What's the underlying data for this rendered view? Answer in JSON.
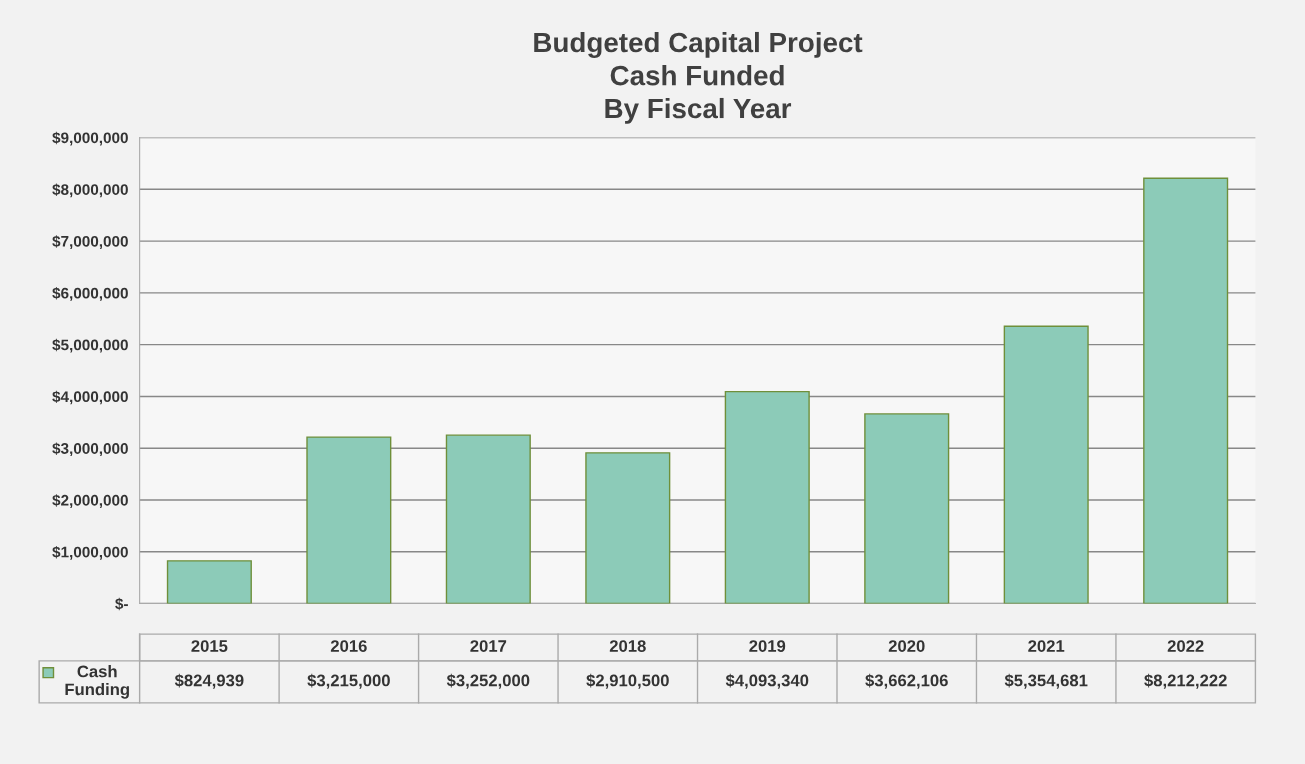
{
  "chart_data": {
    "type": "bar",
    "title": "Budgeted Capital Project\nCash Funded\nBy Fiscal Year",
    "categories": [
      "2015",
      "2016",
      "2017",
      "2018",
      "2019",
      "2020",
      "2021",
      "2022"
    ],
    "series": [
      {
        "name": "Cash\nFunding",
        "color": "#8ccbb8",
        "values": [
          824939,
          3215000,
          3252000,
          2910500,
          4093340,
          3662106,
          5354681,
          8212222
        ],
        "value_labels": [
          "$824,939",
          "$3,215,000",
          "$3,252,000",
          "$2,910,500",
          "$4,093,340",
          "$3,662,106",
          "$5,354,681",
          "$8,212,222"
        ]
      }
    ],
    "ylim": [
      0,
      9000000
    ],
    "yticks": [
      {
        "value": 0,
        "label": "$-"
      },
      {
        "value": 1000000,
        "label": "$1,000,000"
      },
      {
        "value": 2000000,
        "label": "$2,000,000"
      },
      {
        "value": 3000000,
        "label": "$3,000,000"
      },
      {
        "value": 4000000,
        "label": "$4,000,000"
      },
      {
        "value": 5000000,
        "label": "$5,000,000"
      },
      {
        "value": 6000000,
        "label": "$6,000,000"
      },
      {
        "value": 7000000,
        "label": "$7,000,000"
      },
      {
        "value": 8000000,
        "label": "$8,000,000"
      },
      {
        "value": 9000000,
        "label": "$9,000,000"
      }
    ],
    "grid": "y",
    "data_labels": true
  }
}
